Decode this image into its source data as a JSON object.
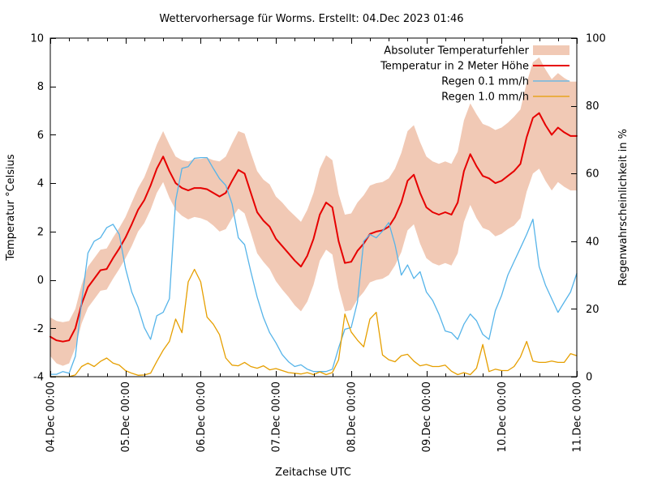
{
  "chart_data": {
    "type": "line",
    "title": "Wettervorhersage für Worms. Erstellt: 04.Dec 2023 01:46",
    "xlabel": "Zeitachse UTC",
    "ylabel_left": "Temperatur °Celsius",
    "ylabel_right": "Regenwahrscheinlichkeit in %",
    "ylim_left": [
      -4,
      10
    ],
    "ylim_right": [
      0,
      100
    ],
    "yticks_left": [
      10,
      8,
      6,
      4,
      2,
      0,
      -2,
      -4
    ],
    "yticks_right": [
      100,
      80,
      60,
      40,
      20,
      0
    ],
    "x_range_hours": [
      0,
      168
    ],
    "x_tick_hours": [
      0,
      24,
      48,
      72,
      96,
      120,
      144,
      168
    ],
    "x_tick_labels": [
      "04.Dec 00:00",
      "05.Dec 00:00",
      "06.Dec 00:00",
      "07.Dec 00:00",
      "08.Dec 00:00",
      "09.Dec 00:00",
      "10.Dec 00:00",
      "11.Dec 00:00"
    ],
    "x_minor_tick_step_hours": 6,
    "grid": false,
    "legend_position": "top-right-inside",
    "x_hours": [
      0,
      2,
      4,
      6,
      8,
      10,
      12,
      14,
      16,
      18,
      20,
      22,
      24,
      26,
      28,
      30,
      32,
      34,
      36,
      38,
      40,
      42,
      44,
      46,
      48,
      50,
      52,
      54,
      56,
      58,
      60,
      62,
      64,
      66,
      68,
      70,
      72,
      74,
      76,
      78,
      80,
      82,
      84,
      86,
      88,
      90,
      92,
      94,
      96,
      98,
      100,
      102,
      104,
      106,
      108,
      110,
      112,
      114,
      116,
      118,
      120,
      122,
      124,
      126,
      128,
      130,
      132,
      134,
      136,
      138,
      140,
      142,
      144,
      146,
      148,
      150,
      152,
      154,
      156,
      158,
      160,
      162,
      164,
      166,
      168
    ],
    "series": [
      {
        "name": "Absoluter Temperaturfehler",
        "kind": "band",
        "axis": "left",
        "color": "#f1c9b5",
        "upper": [
          -1.55,
          -1.7,
          -1.75,
          -1.7,
          -1.2,
          -0.2,
          0.55,
          0.9,
          1.25,
          1.3,
          1.75,
          2.15,
          2.6,
          3.2,
          3.8,
          4.25,
          4.9,
          5.6,
          6.15,
          5.6,
          5.1,
          4.95,
          4.9,
          5.0,
          5.0,
          5.05,
          4.95,
          4.9,
          5.1,
          5.65,
          6.15,
          6.05,
          5.25,
          4.5,
          4.15,
          3.95,
          3.45,
          3.2,
          2.9,
          2.65,
          2.4,
          2.9,
          3.6,
          4.6,
          5.15,
          4.95,
          3.55,
          2.7,
          2.75,
          3.2,
          3.5,
          3.9,
          4.0,
          4.05,
          4.2,
          4.6,
          5.25,
          6.15,
          6.4,
          5.7,
          5.1,
          4.9,
          4.8,
          4.9,
          4.8,
          5.3,
          6.6,
          7.3,
          6.85,
          6.45,
          6.35,
          6.2,
          6.3,
          6.5,
          6.75,
          7.05,
          8.15,
          9.0,
          9.2,
          8.7,
          8.3,
          8.55,
          8.35,
          8.2,
          8.2
        ],
        "lower": [
          -3.15,
          -3.45,
          -3.55,
          -3.45,
          -2.8,
          -1.8,
          -1.15,
          -0.8,
          -0.45,
          -0.4,
          0.05,
          0.45,
          0.9,
          1.4,
          2.0,
          2.35,
          2.9,
          3.6,
          4.05,
          3.4,
          2.9,
          2.65,
          2.5,
          2.6,
          2.55,
          2.45,
          2.25,
          2.0,
          2.1,
          2.55,
          2.95,
          2.75,
          1.95,
          1.1,
          0.75,
          0.45,
          -0.05,
          -0.4,
          -0.7,
          -1.05,
          -1.3,
          -0.9,
          -0.2,
          0.8,
          1.25,
          1.05,
          -0.35,
          -1.3,
          -1.25,
          -0.8,
          -0.5,
          -0.1,
          0.0,
          0.05,
          0.2,
          0.6,
          1.15,
          2.05,
          2.3,
          1.5,
          0.9,
          0.7,
          0.6,
          0.7,
          0.6,
          1.1,
          2.4,
          3.1,
          2.55,
          2.15,
          2.05,
          1.8,
          1.9,
          2.1,
          2.25,
          2.55,
          3.65,
          4.4,
          4.6,
          4.1,
          3.7,
          4.05,
          3.85,
          3.7,
          3.7
        ]
      },
      {
        "name": "Temperatur in 2 Meter Höhe",
        "kind": "line",
        "axis": "left",
        "color": "#e60000",
        "line_width": 2,
        "values": [
          -2.35,
          -2.5,
          -2.55,
          -2.5,
          -2.0,
          -1.0,
          -0.3,
          0.05,
          0.4,
          0.45,
          0.9,
          1.3,
          1.75,
          2.3,
          2.9,
          3.3,
          3.9,
          4.6,
          5.1,
          4.5,
          4.0,
          3.8,
          3.7,
          3.8,
          3.8,
          3.75,
          3.6,
          3.45,
          3.6,
          4.1,
          4.55,
          4.4,
          3.6,
          2.8,
          2.45,
          2.2,
          1.7,
          1.4,
          1.1,
          0.8,
          0.55,
          1.0,
          1.7,
          2.7,
          3.2,
          3.0,
          1.6,
          0.7,
          0.75,
          1.2,
          1.5,
          1.9,
          2.0,
          2.05,
          2.2,
          2.6,
          3.2,
          4.1,
          4.35,
          3.6,
          3.0,
          2.8,
          2.7,
          2.8,
          2.7,
          3.2,
          4.5,
          5.2,
          4.7,
          4.3,
          4.2,
          4.0,
          4.1,
          4.3,
          4.5,
          4.8,
          5.9,
          6.7,
          6.9,
          6.4,
          6.0,
          6.3,
          6.1,
          5.95,
          5.95
        ]
      },
      {
        "name": "Regen 0.1 mm/h",
        "kind": "line",
        "axis": "right",
        "color": "#56b4e9",
        "line_width": 1.3,
        "values": [
          0.7,
          0.7,
          1.5,
          1.0,
          6,
          22,
          36.5,
          40,
          41,
          44,
          45,
          42,
          32,
          25,
          20.5,
          14.5,
          11,
          18,
          19,
          23,
          52,
          61.5,
          62,
          64.5,
          64.7,
          64.7,
          61.5,
          58.5,
          56.5,
          51,
          41,
          39,
          31,
          23.5,
          17.5,
          13,
          10,
          6.5,
          4.4,
          3,
          3.5,
          2.2,
          1.5,
          1.5,
          1.5,
          2.2,
          8.5,
          14,
          14.5,
          22,
          40,
          42,
          41,
          43,
          45.5,
          39,
          30,
          33,
          29,
          31,
          25,
          22.5,
          18.5,
          13.5,
          13,
          11,
          15.5,
          18.5,
          16.5,
          12.5,
          11,
          19.5,
          24,
          30,
          34,
          38,
          42,
          46.5,
          32.5,
          27,
          23,
          19,
          22,
          25,
          30.5
        ]
      },
      {
        "name": "Regen 1.0 mm/h",
        "kind": "line",
        "axis": "right",
        "color": "#e69f00",
        "line_width": 1.3,
        "values": [
          0,
          0,
          0,
          0,
          0.5,
          3,
          4,
          3,
          4.5,
          5.5,
          4,
          3.4,
          1.8,
          1,
          0.4,
          0.5,
          1,
          4.5,
          7.8,
          10.4,
          17,
          13,
          28,
          31.7,
          28,
          17.6,
          15.5,
          12.4,
          5.5,
          3.4,
          3.2,
          4.2,
          3,
          2.5,
          3.2,
          2,
          2.4,
          1.8,
          1.2,
          1,
          0.8,
          1.2,
          0.6,
          1.4,
          0.6,
          1.2,
          5,
          18.5,
          13.2,
          10.8,
          8.8,
          17,
          19,
          6.4,
          5,
          4.4,
          6.2,
          6.6,
          4.6,
          3.2,
          3.6,
          3,
          3,
          3.4,
          1.6,
          0.6,
          1.2,
          0.6,
          2.5,
          9.5,
          1.5,
          2.2,
          1.8,
          1.8,
          3,
          5.8,
          10.4,
          4.6,
          4.2,
          4.2,
          4.6,
          4.2,
          4.2,
          6.8,
          6.2
        ]
      }
    ]
  }
}
